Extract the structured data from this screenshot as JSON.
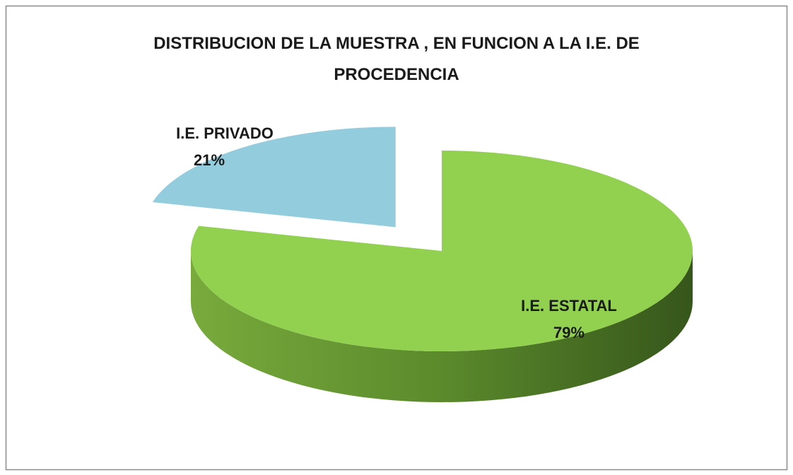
{
  "chart_data": {
    "type": "pie",
    "title": "DISTRIBUCION DE LA MUESTRA , EN FUNCION A LA I.E. DE PROCEDENCIA",
    "categories": [
      "I.E. ESTATAL",
      "I.E. PRIVADO"
    ],
    "values": [
      79,
      21
    ],
    "value_labels": [
      "79%",
      "21%"
    ],
    "colors": [
      "#92d050",
      "#93cddd"
    ]
  }
}
